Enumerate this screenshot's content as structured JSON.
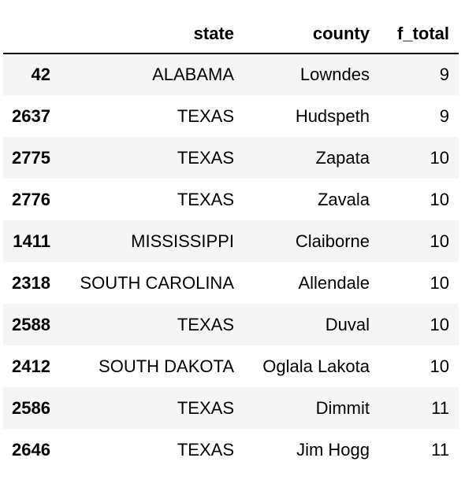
{
  "table": {
    "columns": [
      "",
      "state",
      "county",
      "f_total"
    ],
    "rows": [
      {
        "index": "42",
        "state": "ALABAMA",
        "county": "Lowndes",
        "f_total": "9"
      },
      {
        "index": "2637",
        "state": "TEXAS",
        "county": "Hudspeth",
        "f_total": "9"
      },
      {
        "index": "2775",
        "state": "TEXAS",
        "county": "Zapata",
        "f_total": "10"
      },
      {
        "index": "2776",
        "state": "TEXAS",
        "county": "Zavala",
        "f_total": "10"
      },
      {
        "index": "1411",
        "state": "MISSISSIPPI",
        "county": "Claiborne",
        "f_total": "10"
      },
      {
        "index": "2318",
        "state": "SOUTH CAROLINA",
        "county": "Allendale",
        "f_total": "10"
      },
      {
        "index": "2588",
        "state": "TEXAS",
        "county": "Duval",
        "f_total": "10"
      },
      {
        "index": "2412",
        "state": "SOUTH DAKOTA",
        "county": "Oglala Lakota",
        "f_total": "10"
      },
      {
        "index": "2586",
        "state": "TEXAS",
        "county": "Dimmit",
        "f_total": "11"
      },
      {
        "index": "2646",
        "state": "TEXAS",
        "county": "Jim Hogg",
        "f_total": "11"
      }
    ]
  }
}
